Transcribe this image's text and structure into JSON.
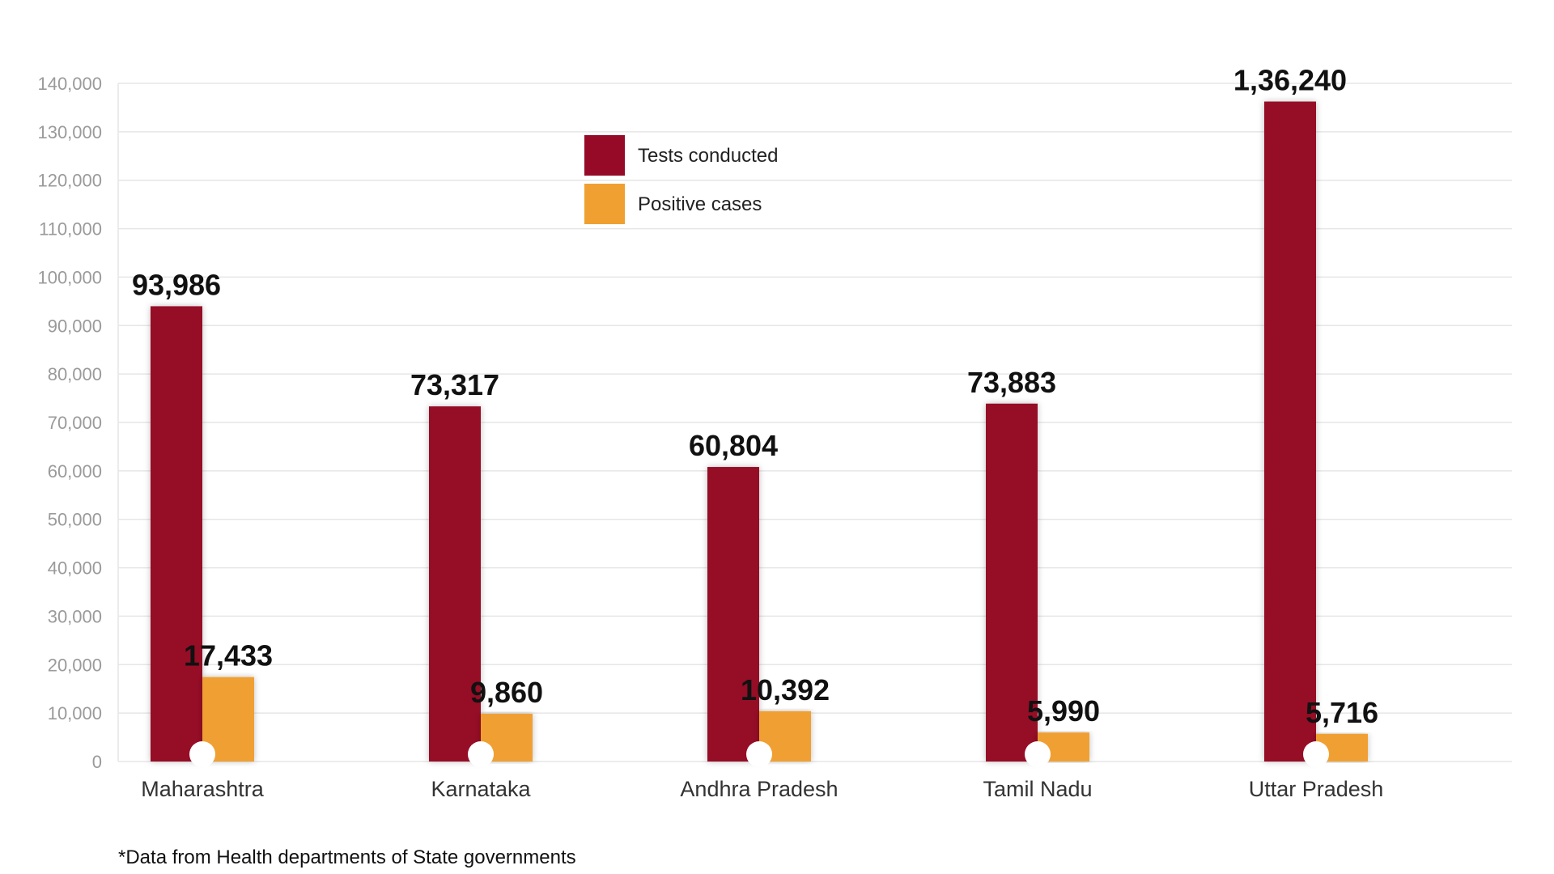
{
  "chart_data": {
    "type": "bar",
    "categories": [
      "Maharashtra",
      "Karnataka",
      "Andhra Pradesh",
      "Tamil Nadu",
      "Uttar Pradesh"
    ],
    "series": [
      {
        "name": "Tests conducted",
        "values": [
          93986,
          73317,
          60804,
          73883,
          136240
        ],
        "labels": [
          "93,986",
          "73,317",
          "60,804",
          "73,883",
          "1,36,240"
        ],
        "color": "#960a28"
      },
      {
        "name": "Positive cases",
        "values": [
          17433,
          9860,
          10392,
          5990,
          5716
        ],
        "labels": [
          "17,433",
          "9,860",
          "10,392",
          "5,990",
          "5,716"
        ],
        "color": "#f0a030"
      }
    ],
    "yticks": [
      0,
      10000,
      20000,
      30000,
      40000,
      50000,
      60000,
      70000,
      80000,
      90000,
      100000,
      110000,
      120000,
      130000,
      140000
    ],
    "ytick_labels": [
      "0",
      "10,000",
      "20,000",
      "30,000",
      "40,000",
      "50,000",
      "60,000",
      "70,000",
      "80,000",
      "90,000",
      "100,000",
      "110,000",
      "120,000",
      "130,000",
      "140,000"
    ],
    "ylim": [
      0,
      140000
    ],
    "grid": true,
    "legend_position": "top-center"
  },
  "footnote": "*Data from Health departments of State governments",
  "colors": {
    "grid": "#e6e6e6",
    "tick_text": "#9a9a9a",
    "category_text": "#333333",
    "value_text": "#111111",
    "marker": "#ffffff"
  }
}
